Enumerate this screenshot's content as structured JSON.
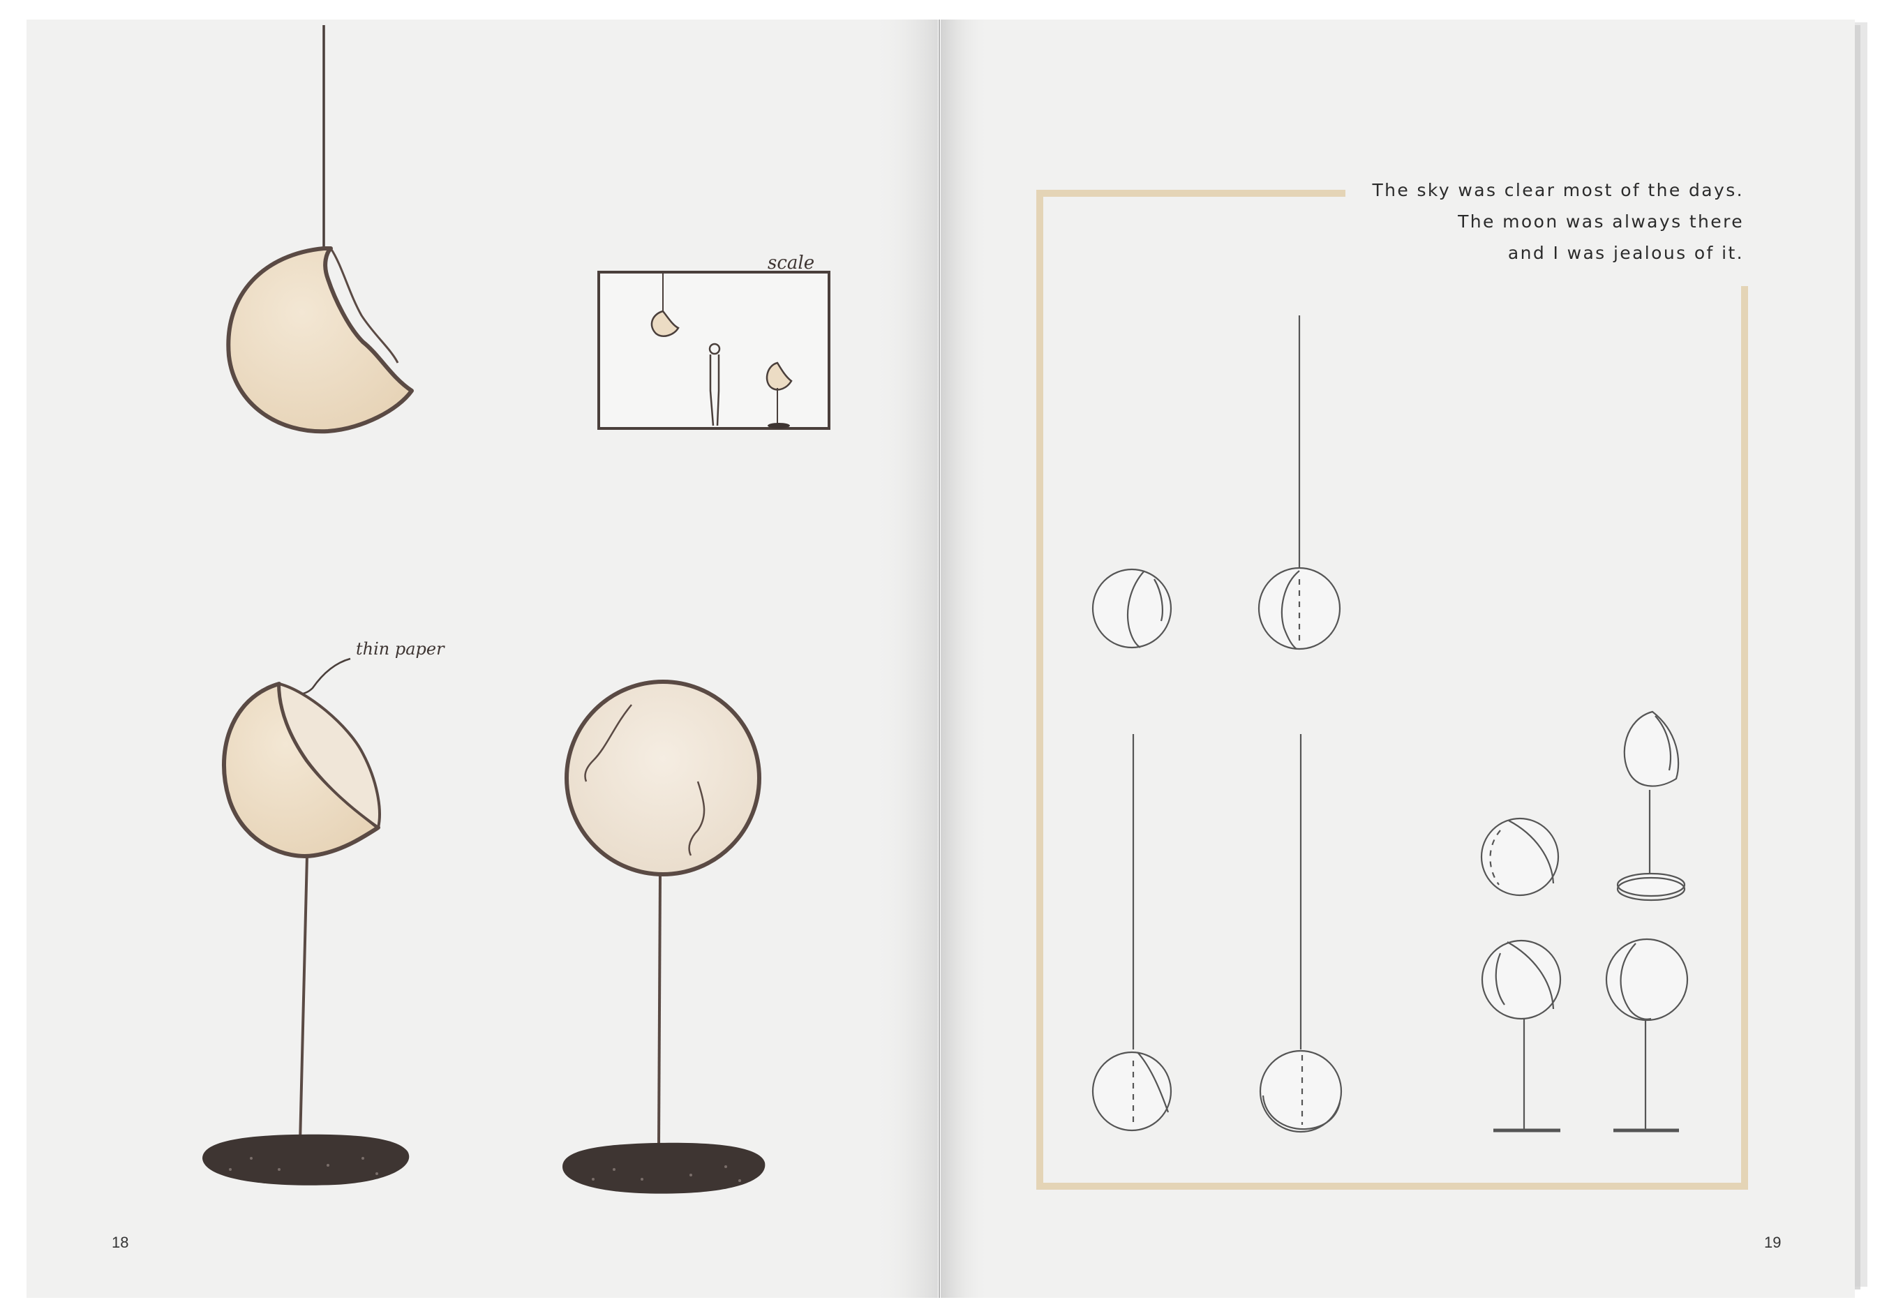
{
  "left_page": {
    "page_number": "18",
    "annotations": {
      "scale_label": "scale",
      "thin_paper_label": "thin paper"
    }
  },
  "right_page": {
    "page_number": "19",
    "caption_lines": [
      "The sky was clear most of the days.",
      "The moon was always there",
      "and I was jealous of it."
    ]
  },
  "colors": {
    "paper": "#f1f1f0",
    "moon_fill": "#ecdcc4",
    "moon_stroke": "#5a4a44",
    "shadow": "#3e3532",
    "frame_gold": "#e2d2b3",
    "line_art": "#555555"
  }
}
